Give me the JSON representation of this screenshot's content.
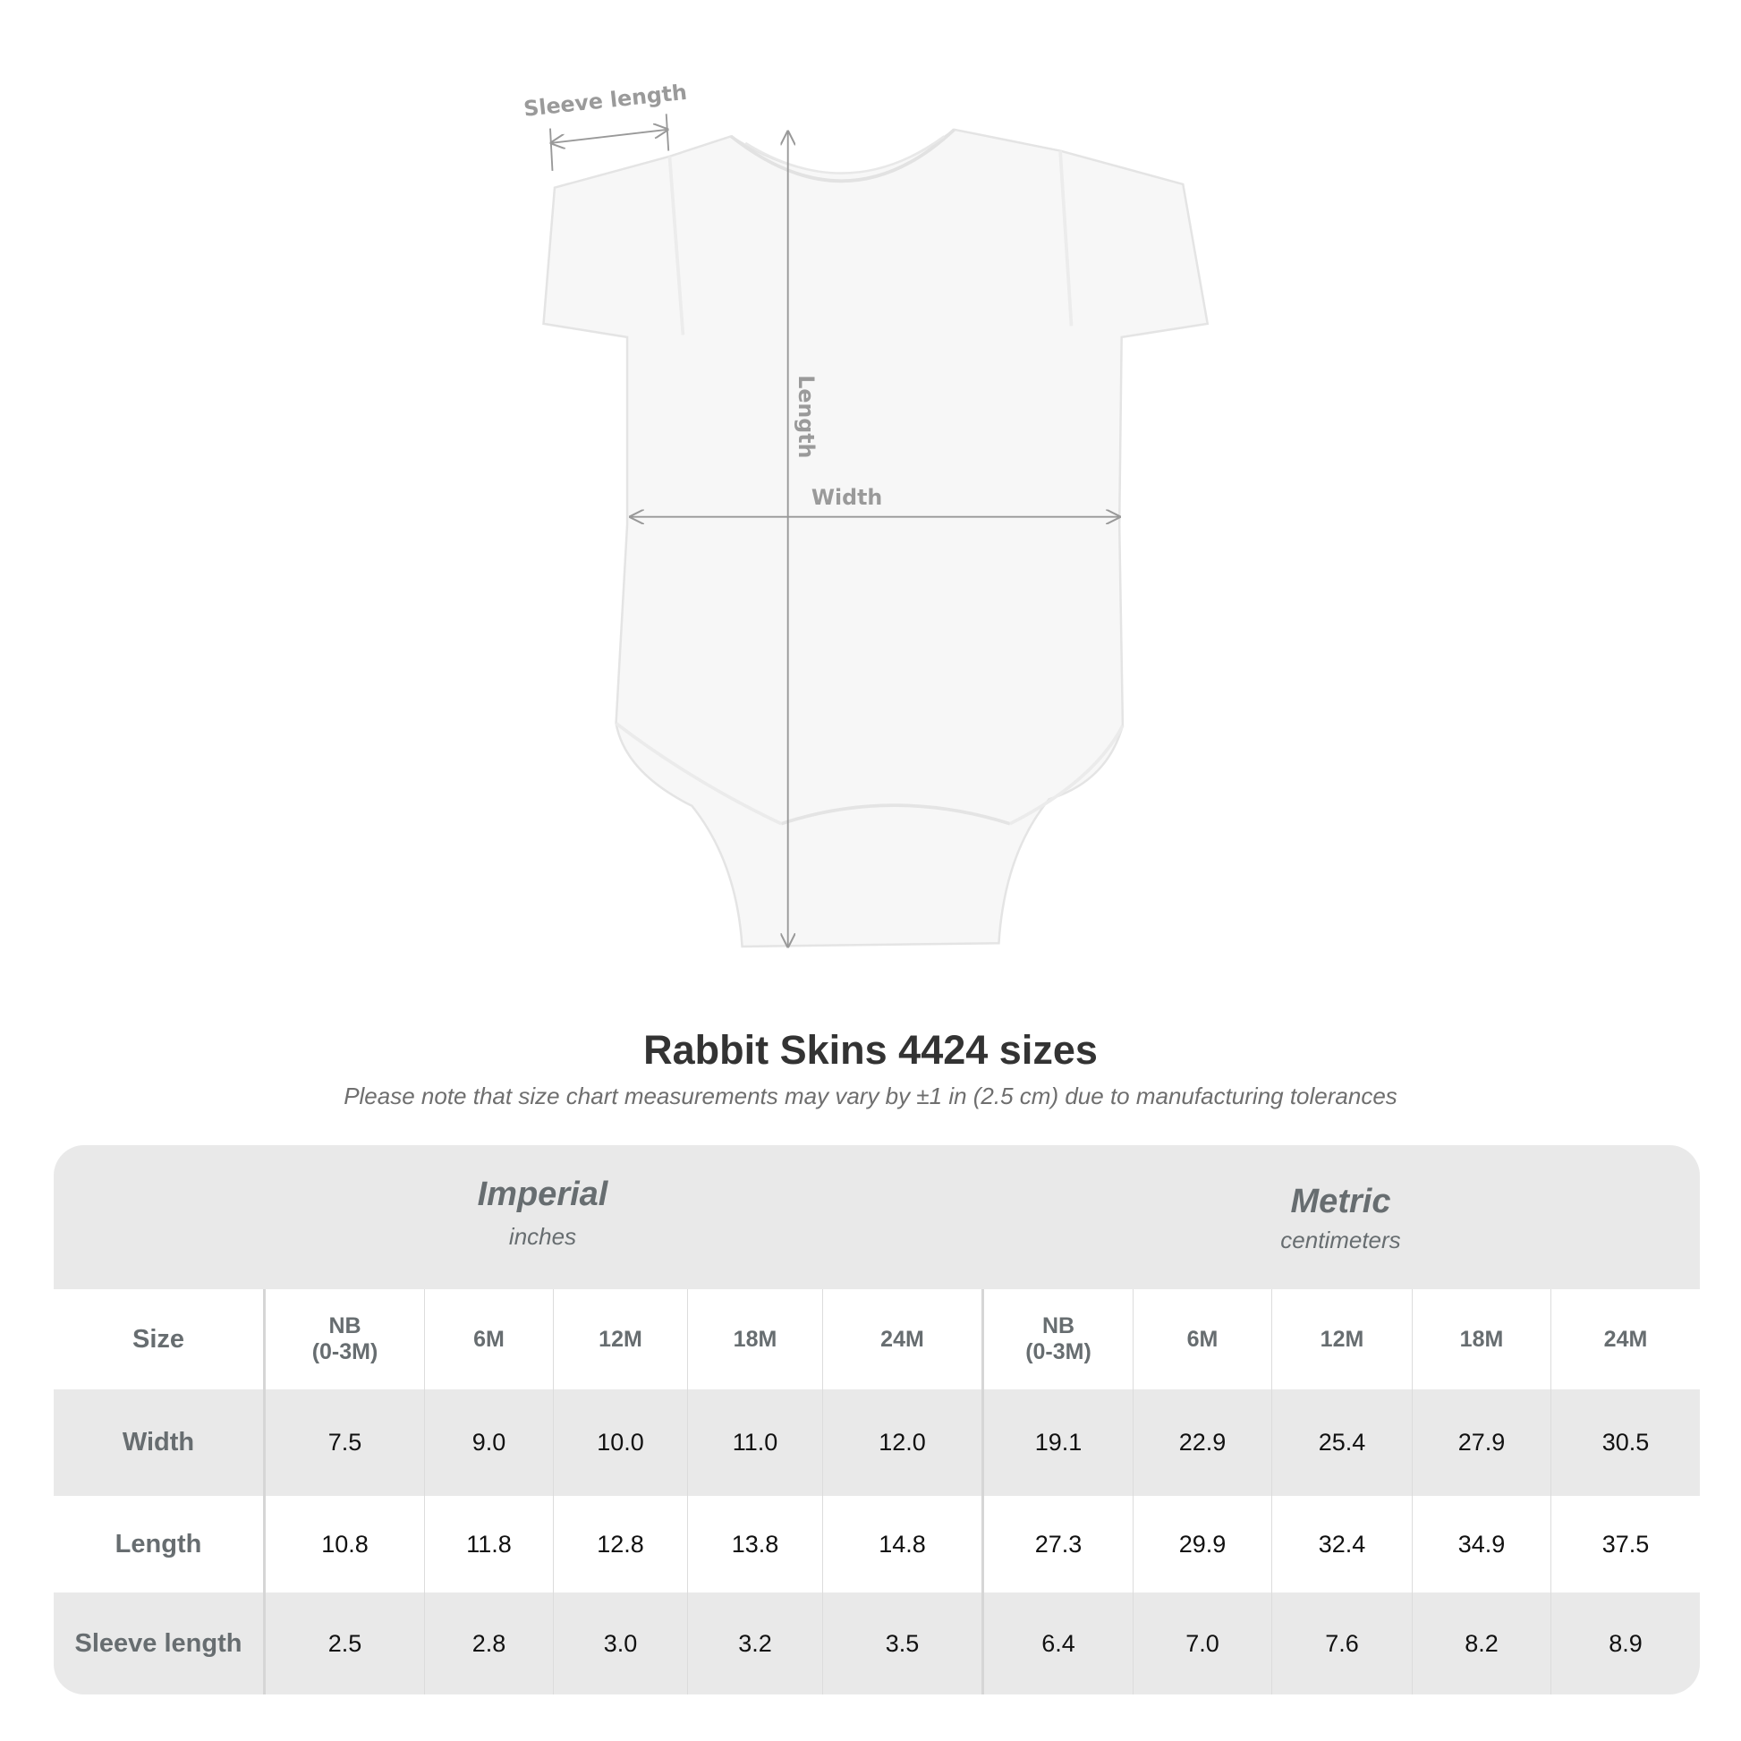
{
  "diagram": {
    "labels": {
      "sleeve": "Sleeve length",
      "length": "Length",
      "width": "Width"
    },
    "garment_color": "#f7f7f7",
    "line_color": "#999999"
  },
  "title": "Rabbit Skins 4424 sizes",
  "subtitle": "Please note that size chart measurements may vary by ±1 in (2.5 cm) due to manufacturing tolerances",
  "table": {
    "groups": [
      {
        "title": "Imperial",
        "unit": "inches"
      },
      {
        "title": "Metric",
        "unit": "centimeters"
      }
    ],
    "size_label": "Size",
    "sizes": [
      "NB\n(0-3M)",
      "6M",
      "12M",
      "18M",
      "24M",
      "NB\n(0-3M)",
      "6M",
      "12M",
      "18M",
      "24M"
    ],
    "rows": [
      {
        "label": "Width",
        "values": [
          "7.5",
          "9.0",
          "10.0",
          "11.0",
          "12.0",
          "19.1",
          "22.9",
          "25.4",
          "27.9",
          "30.5"
        ]
      },
      {
        "label": "Length",
        "values": [
          "10.8",
          "11.8",
          "12.8",
          "13.8",
          "14.8",
          "27.3",
          "29.9",
          "32.4",
          "34.9",
          "37.5"
        ]
      },
      {
        "label": "Sleeve length",
        "values": [
          "2.5",
          "2.8",
          "3.0",
          "3.2",
          "3.5",
          "6.4",
          "7.0",
          "7.6",
          "8.2",
          "8.9"
        ]
      }
    ],
    "band_color": "#e9e9e9",
    "label_color": "#676d70"
  }
}
